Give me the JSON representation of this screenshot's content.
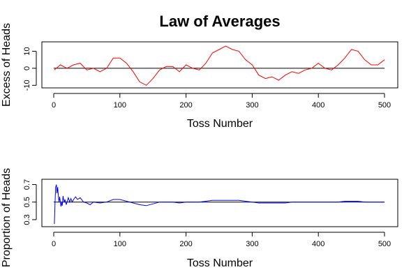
{
  "chart_data": {
    "type": "line",
    "title": "Law of Averages",
    "panels": [
      {
        "ylabel": "Excess of Heads",
        "xlabel": "Toss Number",
        "xlim": [
          0,
          500
        ],
        "ylim": [
          -11.5,
          15.5
        ],
        "xticks": [
          0,
          100,
          200,
          300,
          400,
          500
        ],
        "yticks": [
          -10,
          0,
          10
        ],
        "reference_y": 0,
        "series_color": "#ff0000",
        "x": [
          1,
          10,
          20,
          30,
          40,
          50,
          60,
          70,
          80,
          90,
          100,
          110,
          120,
          130,
          140,
          150,
          160,
          170,
          180,
          190,
          200,
          210,
          220,
          230,
          240,
          250,
          260,
          270,
          280,
          290,
          300,
          310,
          320,
          330,
          340,
          350,
          360,
          370,
          380,
          390,
          400,
          410,
          420,
          430,
          440,
          450,
          460,
          470,
          480,
          490,
          500
        ],
        "values": [
          -1,
          2,
          0,
          2,
          3,
          -1,
          0,
          -2,
          0,
          6,
          6,
          3,
          -2,
          -8,
          -10,
          -6,
          -1,
          1,
          1,
          -2,
          2,
          0,
          -1,
          3,
          9,
          11,
          13,
          11,
          10,
          5,
          2,
          -4,
          -6,
          -5,
          -7,
          -4,
          -2,
          -3,
          -1,
          0,
          3,
          0,
          -1,
          2,
          6,
          11,
          10,
          5,
          2,
          2,
          5
        ]
      },
      {
        "ylabel": "Proportion of Heads",
        "xlabel": "Toss Number",
        "xlim": [
          0,
          500
        ],
        "ylim": [
          0.22,
          0.76
        ],
        "xticks": [
          0,
          100,
          200,
          300,
          400,
          500
        ],
        "yticks": [
          0.3,
          0.5,
          0.7
        ],
        "reference_y": 0.5,
        "series_color": "#0000ff",
        "x": [
          1,
          2,
          3,
          4,
          5,
          6,
          7,
          8,
          9,
          10,
          11,
          12,
          13,
          14,
          15,
          16,
          17,
          18,
          19,
          20,
          22,
          24,
          26,
          28,
          30,
          33,
          36,
          40,
          45,
          50,
          55,
          60,
          70,
          80,
          90,
          100,
          110,
          120,
          130,
          140,
          150,
          160,
          170,
          180,
          190,
          200,
          210,
          220,
          230,
          240,
          250,
          260,
          270,
          280,
          290,
          300,
          310,
          320,
          330,
          340,
          350,
          360,
          370,
          380,
          390,
          400,
          410,
          420,
          430,
          440,
          450,
          460,
          470,
          480,
          490,
          500
        ],
        "values": [
          0.25,
          0.5,
          0.67,
          0.7,
          0.6,
          0.67,
          0.57,
          0.5,
          0.56,
          0.5,
          0.45,
          0.5,
          0.46,
          0.57,
          0.53,
          0.5,
          0.53,
          0.5,
          0.47,
          0.5,
          0.55,
          0.5,
          0.54,
          0.5,
          0.53,
          0.56,
          0.53,
          0.55,
          0.5,
          0.49,
          0.47,
          0.5,
          0.49,
          0.5,
          0.53,
          0.53,
          0.51,
          0.49,
          0.47,
          0.46,
          0.48,
          0.5,
          0.5,
          0.5,
          0.49,
          0.5,
          0.5,
          0.5,
          0.51,
          0.52,
          0.52,
          0.52,
          0.52,
          0.52,
          0.51,
          0.5,
          0.49,
          0.49,
          0.49,
          0.49,
          0.49,
          0.5,
          0.5,
          0.5,
          0.5,
          0.5,
          0.5,
          0.5,
          0.5,
          0.51,
          0.51,
          0.51,
          0.5,
          0.5,
          0.5,
          0.5
        ]
      }
    ]
  }
}
